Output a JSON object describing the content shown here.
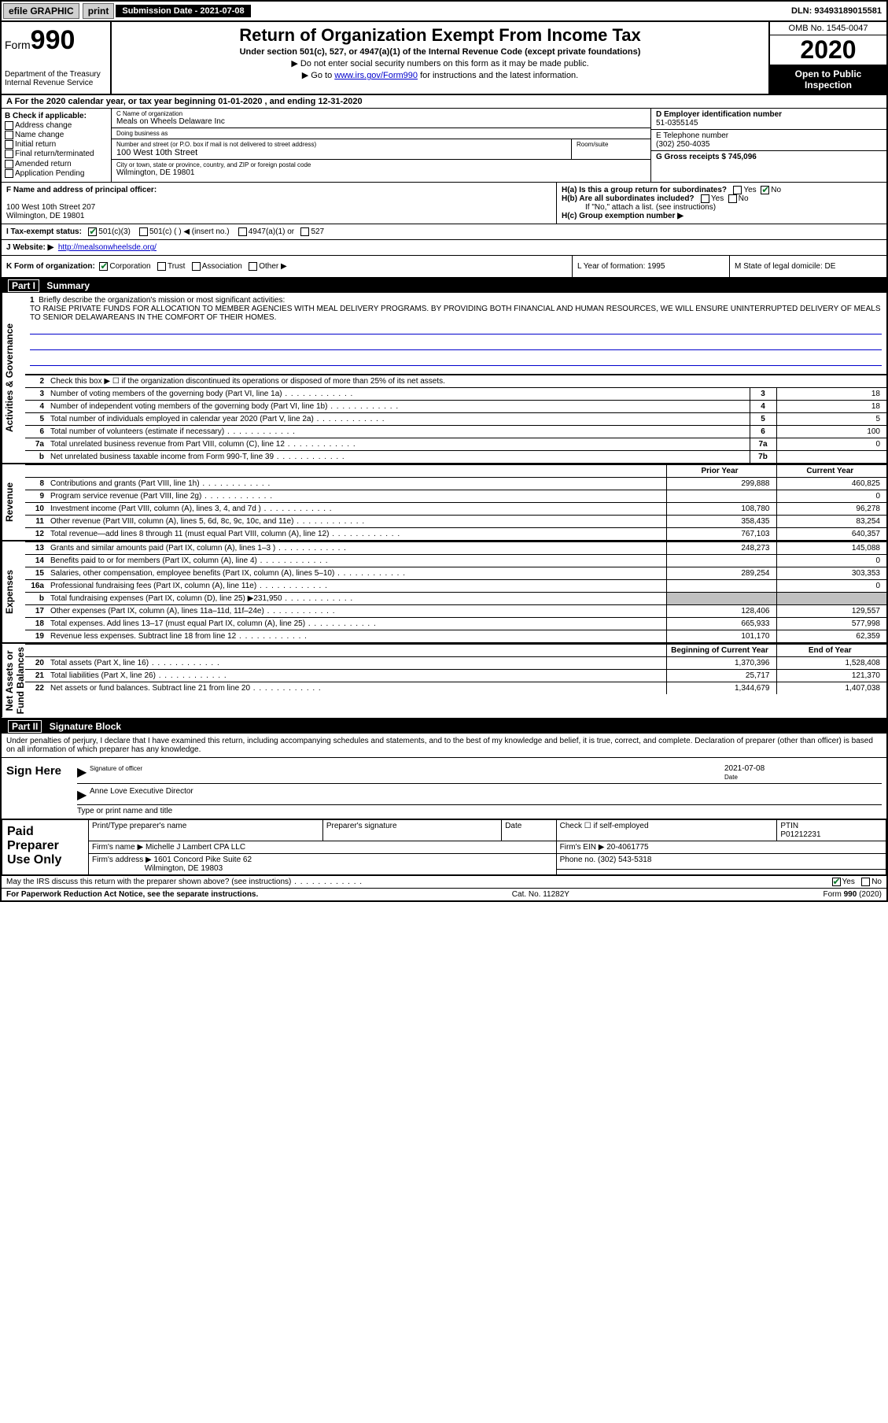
{
  "colors": {
    "link": "#0000cc",
    "header_bg": "#000000",
    "header_fg": "#ffffff",
    "shade": "#c0c0c0",
    "check": "#0a7a2a"
  },
  "topbar": {
    "efile": "efile GRAPHIC",
    "print": "print",
    "submission_label": "Submission Date - 2021-07-08",
    "dln": "DLN: 93493189015581"
  },
  "header": {
    "form_word": "Form",
    "form_num": "990",
    "dept": "Department of the Treasury\nInternal Revenue Service",
    "title": "Return of Organization Exempt From Income Tax",
    "subtitle": "Under section 501(c), 527, or 4947(a)(1) of the Internal Revenue Code (except private foundations)",
    "line1": "▶ Do not enter social security numbers on this form as it may be made public.",
    "line2_pre": "▶ Go to ",
    "line2_link": "www.irs.gov/Form990",
    "line2_post": " for instructions and the latest information.",
    "omb": "OMB No. 1545-0047",
    "year": "2020",
    "inspect": "Open to Public Inspection"
  },
  "rowA": "A For the 2020 calendar year, or tax year beginning 01-01-2020    , and ending 12-31-2020",
  "boxB": {
    "label": "B Check if applicable:",
    "items": [
      "Address change",
      "Name change",
      "Initial return",
      "Final return/terminated",
      "Amended return",
      "Application Pending"
    ]
  },
  "boxC": {
    "name_lbl": "C Name of organization",
    "name": "Meals on Wheels Delaware Inc",
    "dba_lbl": "Doing business as",
    "dba": "",
    "street_lbl": "Number and street (or P.O. box if mail is not delivered to street address)",
    "room_lbl": "Room/suite",
    "street": "100 West 10th Street",
    "city_lbl": "City or town, state or province, country, and ZIP or foreign postal code",
    "city": "Wilmington, DE  19801"
  },
  "colDE": {
    "d_lbl": "D Employer identification number",
    "d_val": "51-0355145",
    "e_lbl": "E Telephone number",
    "e_val": "(302) 250-4035",
    "g_lbl": "G Gross receipts $ 745,096"
  },
  "rowF": {
    "lbl": "F  Name and address of principal officer:",
    "addr1": "100 West 10th Street 207",
    "addr2": "Wilmington, DE  19801"
  },
  "rowH": {
    "ha": "H(a)  Is this a group return for subordinates?",
    "hb": "H(b)  Are all subordinates included?",
    "hb_note": "If \"No,\" attach a list. (see instructions)",
    "hc": "H(c)  Group exemption number ▶",
    "yes": "Yes",
    "no": "No"
  },
  "rowI": {
    "lbl": "I   Tax-exempt status:",
    "opts": [
      "501(c)(3)",
      "501(c) (   ) ◀ (insert no.)",
      "4947(a)(1) or",
      "527"
    ]
  },
  "rowJ": {
    "lbl": "J   Website: ▶",
    "url": "http://mealsonwheelsde.org/"
  },
  "rowK": {
    "lbl": "K Form of organization:",
    "opts": [
      "Corporation",
      "Trust",
      "Association",
      "Other ▶"
    ]
  },
  "rowL": "L Year of formation: 1995",
  "rowM": "M State of legal domicile: DE",
  "partI": {
    "no": "Part I",
    "title": "Summary"
  },
  "mission": {
    "num": "1",
    "lbl": "Briefly describe the organization's mission or most significant activities:",
    "text": "TO RAISE PRIVATE FUNDS FOR ALLOCATION TO MEMBER AGENCIES WITH MEAL DELIVERY PROGRAMS. BY PROVIDING BOTH FINANCIAL AND HUMAN RESOURCES, WE WILL ENSURE UNINTERRUPTED DELIVERY OF MEALS TO SENIOR DELAWAREANS IN THE COMFORT OF THEIR HOMES."
  },
  "line2": "Check this box ▶ ☐  if the organization discontinued its operations or disposed of more than 25% of its net assets.",
  "ag_rows": [
    {
      "n": "3",
      "d": "Number of voting members of the governing body (Part VI, line 1a)",
      "b": "3",
      "v": "18"
    },
    {
      "n": "4",
      "d": "Number of independent voting members of the governing body (Part VI, line 1b)",
      "b": "4",
      "v": "18"
    },
    {
      "n": "5",
      "d": "Total number of individuals employed in calendar year 2020 (Part V, line 2a)",
      "b": "5",
      "v": "5"
    },
    {
      "n": "6",
      "d": "Total number of volunteers (estimate if necessary)",
      "b": "6",
      "v": "100"
    },
    {
      "n": "7a",
      "d": "Total unrelated business revenue from Part VIII, column (C), line 12",
      "b": "7a",
      "v": "0"
    },
    {
      "n": "b",
      "d": "Net unrelated business taxable income from Form 990-T, line 39",
      "b": "7b",
      "v": ""
    }
  ],
  "rev_hdr": {
    "py": "Prior Year",
    "cy": "Current Year"
  },
  "rev_rows": [
    {
      "n": "8",
      "d": "Contributions and grants (Part VIII, line 1h)",
      "py": "299,888",
      "cy": "460,825"
    },
    {
      "n": "9",
      "d": "Program service revenue (Part VIII, line 2g)",
      "py": "",
      "cy": "0"
    },
    {
      "n": "10",
      "d": "Investment income (Part VIII, column (A), lines 3, 4, and 7d )",
      "py": "108,780",
      "cy": "96,278"
    },
    {
      "n": "11",
      "d": "Other revenue (Part VIII, column (A), lines 5, 6d, 8c, 9c, 10c, and 11e)",
      "py": "358,435",
      "cy": "83,254"
    },
    {
      "n": "12",
      "d": "Total revenue—add lines 8 through 11 (must equal Part VIII, column (A), line 12)",
      "py": "767,103",
      "cy": "640,357"
    }
  ],
  "exp_rows": [
    {
      "n": "13",
      "d": "Grants and similar amounts paid (Part IX, column (A), lines 1–3 )",
      "py": "248,273",
      "cy": "145,088"
    },
    {
      "n": "14",
      "d": "Benefits paid to or for members (Part IX, column (A), line 4)",
      "py": "",
      "cy": "0"
    },
    {
      "n": "15",
      "d": "Salaries, other compensation, employee benefits (Part IX, column (A), lines 5–10)",
      "py": "289,254",
      "cy": "303,353"
    },
    {
      "n": "16a",
      "d": "Professional fundraising fees (Part IX, column (A), line 11e)",
      "py": "",
      "cy": "0"
    },
    {
      "n": "b",
      "d": "Total fundraising expenses (Part IX, column (D), line 25) ▶231,950",
      "py": "__shade__",
      "cy": "__shade__"
    },
    {
      "n": "17",
      "d": "Other expenses (Part IX, column (A), lines 11a–11d, 11f–24e)",
      "py": "128,406",
      "cy": "129,557"
    },
    {
      "n": "18",
      "d": "Total expenses. Add lines 13–17 (must equal Part IX, column (A), line 25)",
      "py": "665,933",
      "cy": "577,998"
    },
    {
      "n": "19",
      "d": "Revenue less expenses. Subtract line 18 from line 12",
      "py": "101,170",
      "cy": "62,359"
    }
  ],
  "na_hdr": {
    "py": "Beginning of Current Year",
    "cy": "End of Year"
  },
  "na_rows": [
    {
      "n": "20",
      "d": "Total assets (Part X, line 16)",
      "py": "1,370,396",
      "cy": "1,528,408"
    },
    {
      "n": "21",
      "d": "Total liabilities (Part X, line 26)",
      "py": "25,717",
      "cy": "121,370"
    },
    {
      "n": "22",
      "d": "Net assets or fund balances. Subtract line 21 from line 20",
      "py": "1,344,679",
      "cy": "1,407,038"
    }
  ],
  "vtabs": {
    "ag": "Activities & Governance",
    "rev": "Revenue",
    "exp": "Expenses",
    "na": "Net Assets or\nFund Balances"
  },
  "partII": {
    "no": "Part II",
    "title": "Signature Block"
  },
  "sig_intro": "Under penalties of perjury, I declare that I have examined this return, including accompanying schedules and statements, and to the best of my knowledge and belief, it is true, correct, and complete. Declaration of preparer (other than officer) is based on all information of which preparer has any knowledge.",
  "sign_here": {
    "lbl": "Sign Here",
    "sig_lbl": "Signature of officer",
    "date_lbl": "Date",
    "date": "2021-07-08",
    "name": "Anne Love  Executive Director",
    "name_lbl": "Type or print name and title"
  },
  "paid": {
    "lbl": "Paid Preparer Use Only",
    "h1": "Print/Type preparer's name",
    "h2": "Preparer's signature",
    "h3": "Date",
    "h4": "Check ☐ if self-employed",
    "h5": "PTIN",
    "ptin": "P01212231",
    "firm_lbl": "Firm's name    ▶",
    "firm": "Michelle J Lambert CPA LLC",
    "ein_lbl": "Firm's EIN ▶",
    "ein": "20-4061775",
    "addr_lbl": "Firm's address ▶",
    "addr1": "1601 Concord Pike Suite 62",
    "addr2": "Wilmington, DE 19803",
    "phone_lbl": "Phone no.",
    "phone": "(302) 543-5318"
  },
  "discuss": "May the IRS discuss this return with the preparer shown above? (see instructions)",
  "footer": {
    "left": "For Paperwork Reduction Act Notice, see the separate instructions.",
    "mid": "Cat. No. 11282Y",
    "right": "Form 990 (2020)"
  }
}
